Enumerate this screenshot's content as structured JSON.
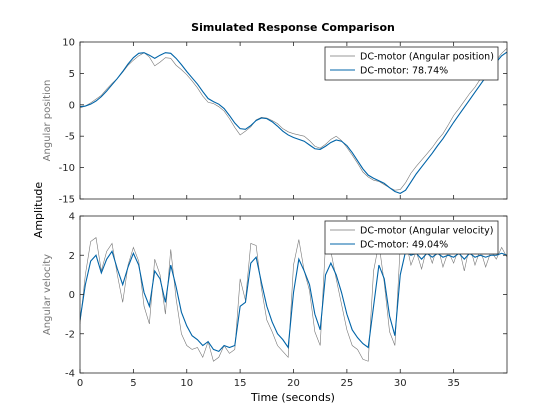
{
  "figure": {
    "title": "Simulated Response Comparison",
    "xlabel": "Time (seconds)",
    "shared_ylabel": "Amplitude"
  },
  "colors": {
    "measured": "#777777",
    "model": "#0064a8",
    "axes": "#262626",
    "background": "#ffffff"
  },
  "chart_data": [
    {
      "type": "line",
      "ylabel": "Angular position",
      "xlim": [
        0,
        40
      ],
      "ylim": [
        -15,
        10
      ],
      "xticks": [
        0,
        5,
        10,
        15,
        20,
        25,
        30,
        35
      ],
      "yticks": [
        -15,
        -10,
        -5,
        0,
        5,
        10
      ],
      "show_xtick_labels": false,
      "grid": false,
      "legend_position": "top-right",
      "series": [
        {
          "name": "DC-motor (Angular position)",
          "role": "measured",
          "x": [
            0,
            0.5,
            1,
            1.5,
            2,
            2.5,
            3,
            3.5,
            4,
            4.5,
            5,
            5.5,
            6,
            6.5,
            7,
            7.5,
            8,
            8.5,
            9,
            9.5,
            10,
            10.5,
            11,
            11.5,
            12,
            12.5,
            13,
            13.5,
            14,
            14.5,
            15,
            15.5,
            16,
            16.5,
            17,
            17.5,
            18,
            18.5,
            19,
            19.5,
            20,
            20.5,
            21,
            21.5,
            22,
            22.5,
            23,
            23.5,
            24,
            24.5,
            25,
            25.5,
            26,
            26.5,
            27,
            27.5,
            28,
            28.5,
            29,
            29.5,
            30,
            30.5,
            31,
            31.5,
            32,
            32.5,
            33,
            33.5,
            34,
            34.5,
            35,
            35.5,
            36,
            36.5,
            37,
            37.5,
            38,
            38.5,
            39,
            39.5,
            40
          ],
          "y": [
            -0.5,
            -0.2,
            0.3,
            0.9,
            1.5,
            2.5,
            3.4,
            4.2,
            5.2,
            6.3,
            7.1,
            7.8,
            8.3,
            7.6,
            6.2,
            6.8,
            7.5,
            7.4,
            6.3,
            5.6,
            4.8,
            3.8,
            2.7,
            1.4,
            0.4,
            0.2,
            -0.3,
            -1.0,
            -2.2,
            -3.6,
            -4.8,
            -4.2,
            -3.5,
            -2.4,
            -2.0,
            -2.1,
            -2.5,
            -3.0,
            -3.8,
            -4.3,
            -4.6,
            -4.8,
            -5.0,
            -5.7,
            -6.6,
            -6.9,
            -6.3,
            -5.5,
            -5.0,
            -5.7,
            -6.8,
            -8.0,
            -9.3,
            -10.7,
            -11.5,
            -12.0,
            -12.2,
            -12.7,
            -13.2,
            -13.6,
            -13.5,
            -12.4,
            -10.9,
            -9.8,
            -8.8,
            -7.8,
            -6.8,
            -5.6,
            -4.6,
            -3.2,
            -1.7,
            -0.6,
            0.6,
            1.8,
            2.8,
            4.1,
            5.3,
            6.2,
            7.1,
            8.2,
            9.0
          ]
        },
        {
          "name": "DC-motor: 78.74%",
          "role": "model",
          "x": [
            0,
            0.5,
            1,
            1.5,
            2,
            2.5,
            3,
            3.5,
            4,
            4.5,
            5,
            5.5,
            6,
            6.5,
            7,
            7.5,
            8,
            8.5,
            9,
            9.5,
            10,
            10.5,
            11,
            11.5,
            12,
            12.5,
            13,
            13.5,
            14,
            14.5,
            15,
            15.5,
            16,
            16.5,
            17,
            17.5,
            18,
            18.5,
            19,
            19.5,
            20,
            20.5,
            21,
            21.5,
            22,
            22.5,
            23,
            23.5,
            24,
            24.5,
            25,
            25.5,
            26,
            26.5,
            27,
            27.5,
            28,
            28.5,
            29,
            29.5,
            30,
            30.5,
            31,
            31.5,
            32,
            32.5,
            33,
            33.5,
            34,
            34.5,
            35,
            35.5,
            36,
            36.5,
            37,
            37.5,
            38,
            38.5,
            39,
            39.5,
            40
          ],
          "y": [
            -0.3,
            -0.2,
            0.1,
            0.6,
            1.3,
            2.2,
            3.2,
            4.2,
            5.3,
            6.5,
            7.5,
            8.2,
            8.3,
            7.9,
            7.4,
            7.9,
            8.3,
            8.2,
            7.4,
            6.4,
            5.3,
            4.3,
            3.3,
            2.1,
            1.0,
            0.5,
            0.1,
            -0.6,
            -1.7,
            -2.9,
            -3.8,
            -3.9,
            -3.3,
            -2.5,
            -2.1,
            -2.2,
            -2.7,
            -3.4,
            -4.2,
            -4.8,
            -5.2,
            -5.5,
            -5.8,
            -6.4,
            -7.0,
            -7.1,
            -6.6,
            -6.0,
            -5.6,
            -5.8,
            -6.5,
            -7.6,
            -8.9,
            -10.2,
            -11.2,
            -11.7,
            -12.1,
            -12.5,
            -13.2,
            -13.8,
            -14.1,
            -13.6,
            -12.3,
            -11.0,
            -9.9,
            -8.8,
            -7.7,
            -6.5,
            -5.4,
            -4.1,
            -2.8,
            -1.6,
            -0.4,
            0.8,
            2.0,
            3.2,
            4.4,
            5.6,
            6.8,
            7.8,
            8.4
          ]
        }
      ]
    },
    {
      "type": "line",
      "ylabel": "Angular velocity",
      "xlim": [
        0,
        40
      ],
      "ylim": [
        -4,
        4
      ],
      "xticks": [
        0,
        5,
        10,
        15,
        20,
        25,
        30,
        35
      ],
      "yticks": [
        -4,
        -2,
        0,
        2,
        4
      ],
      "show_xtick_labels": true,
      "grid": false,
      "legend_position": "top-right",
      "series": [
        {
          "name": "DC-motor (Angular velocity)",
          "role": "measured",
          "x": [
            0,
            0.5,
            1,
            1.5,
            2,
            2.5,
            3,
            3.5,
            4,
            4.5,
            5,
            5.5,
            6,
            6.5,
            7,
            7.5,
            8,
            8.5,
            9,
            9.5,
            10,
            10.5,
            11,
            11.5,
            12,
            12.5,
            13,
            13.5,
            14,
            14.5,
            15,
            15.5,
            16,
            16.5,
            17,
            17.5,
            18,
            18.5,
            19,
            19.5,
            20,
            20.5,
            21,
            21.5,
            22,
            22.5,
            23,
            23.5,
            24,
            24.5,
            25,
            25.5,
            26,
            26.5,
            27,
            27.5,
            28,
            28.5,
            29,
            29.5,
            30,
            30.5,
            31,
            31.5,
            32,
            32.5,
            33,
            33.5,
            34,
            34.5,
            35,
            35.5,
            36,
            36.5,
            37,
            37.5,
            38,
            38.5,
            39,
            39.5,
            40
          ],
          "y": [
            -1.5,
            1.0,
            2.7,
            2.9,
            1.2,
            2.2,
            2.6,
            1.0,
            -0.4,
            1.5,
            2.4,
            1.7,
            -0.6,
            -1.5,
            1.8,
            1.0,
            -1.0,
            2.3,
            -0.2,
            -2.0,
            -2.6,
            -2.8,
            -2.7,
            -3.2,
            -2.4,
            -3.4,
            -3.2,
            -2.6,
            -3.0,
            -2.8,
            0.8,
            -0.3,
            2.6,
            2.5,
            0.3,
            -1.3,
            -1.9,
            -2.6,
            -2.9,
            -3.2,
            1.5,
            2.8,
            1.2,
            0.2,
            -1.9,
            -2.6,
            2.6,
            2.2,
            0.8,
            -0.5,
            -1.8,
            -2.6,
            -2.8,
            -3.3,
            -3.4,
            1.2,
            2.6,
            0.6,
            -1.9,
            -2.6,
            2.5,
            2.8,
            1.5,
            2.2,
            1.3,
            2.4,
            1.6,
            2.5,
            1.4,
            2.2,
            1.6,
            2.4,
            1.2,
            2.5,
            1.5,
            2.3,
            1.4,
            2.2,
            1.8,
            2.4,
            1.9
          ]
        },
        {
          "name": "DC-motor: 49.04%",
          "role": "model",
          "x": [
            0,
            0.5,
            1,
            1.5,
            2,
            2.5,
            3,
            3.5,
            4,
            4.5,
            5,
            5.5,
            6,
            6.5,
            7,
            7.5,
            8,
            8.5,
            9,
            9.5,
            10,
            10.5,
            11,
            11.5,
            12,
            12.5,
            13,
            13.5,
            14,
            14.5,
            15,
            15.5,
            16,
            16.5,
            17,
            17.5,
            18,
            18.5,
            19,
            19.5,
            20,
            20.5,
            21,
            21.5,
            22,
            22.5,
            23,
            23.5,
            24,
            24.5,
            25,
            25.5,
            26,
            26.5,
            27,
            27.5,
            28,
            28.5,
            29,
            29.5,
            30,
            30.5,
            31,
            31.5,
            32,
            32.5,
            33,
            33.5,
            34,
            34.5,
            35,
            35.5,
            36,
            36.5,
            37,
            37.5,
            38,
            38.5,
            39,
            39.5,
            40
          ],
          "y": [
            -1.3,
            0.5,
            1.7,
            2.0,
            1.1,
            1.8,
            2.2,
            1.3,
            0.5,
            1.4,
            2.1,
            1.5,
            0.1,
            -0.6,
            1.2,
            0.8,
            -0.4,
            1.5,
            0.4,
            -0.9,
            -1.6,
            -2.1,
            -2.3,
            -2.6,
            -2.4,
            -2.8,
            -2.9,
            -2.6,
            -2.7,
            -2.6,
            -0.6,
            -0.4,
            1.6,
            1.9,
            0.6,
            -0.6,
            -1.4,
            -2.0,
            -2.3,
            -2.7,
            0.1,
            1.8,
            1.2,
            0.5,
            -1.0,
            -1.8,
            1.0,
            1.6,
            1.0,
            0.1,
            -1.0,
            -1.8,
            -2.2,
            -2.5,
            -2.7,
            -0.6,
            1.5,
            0.8,
            -1.1,
            -2.1,
            1.0,
            2.2,
            2.0,
            2.1,
            1.8,
            2.1,
            1.9,
            2.1,
            1.9,
            2.0,
            1.9,
            2.1,
            1.8,
            2.1,
            1.9,
            2.0,
            1.9,
            2.0,
            2.0,
            2.1,
            2.0
          ]
        }
      ]
    }
  ]
}
